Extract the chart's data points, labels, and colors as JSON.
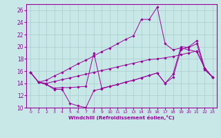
{
  "xlabel": "Windchill (Refroidissement éolien,°C)",
  "bg_color": "#c8e8e8",
  "line_color": "#990099",
  "grid_color": "#aacccc",
  "xlim": [
    -0.5,
    23.5
  ],
  "ylim": [
    10,
    27
  ],
  "yticks": [
    10,
    12,
    14,
    16,
    18,
    20,
    22,
    24,
    26
  ],
  "xticks": [
    0,
    1,
    2,
    3,
    4,
    5,
    6,
    7,
    8,
    9,
    10,
    11,
    12,
    13,
    14,
    15,
    16,
    17,
    18,
    19,
    20,
    21,
    22,
    23
  ],
  "lines_y": [
    [
      15.8,
      14.2,
      13.8,
      13.0,
      13.0,
      10.7,
      10.3,
      10.0,
      12.8,
      13.1,
      13.5,
      13.8,
      14.2,
      14.5,
      14.9,
      15.3,
      15.7,
      14.0,
      15.0,
      19.5,
      20.0,
      21.0,
      16.5,
      15.0
    ],
    [
      15.8,
      14.2,
      13.8,
      13.2,
      13.3,
      13.3,
      13.4,
      13.5,
      19.0,
      13.2,
      13.5,
      13.8,
      14.2,
      14.5,
      14.9,
      15.3,
      15.7,
      14.0,
      15.5,
      20.0,
      19.9,
      20.5,
      16.2,
      15.0
    ],
    [
      15.8,
      14.2,
      14.5,
      15.2,
      15.8,
      16.5,
      17.2,
      17.8,
      18.5,
      19.2,
      19.8,
      20.5,
      21.2,
      21.8,
      24.5,
      24.5,
      26.5,
      20.5,
      19.5,
      19.8,
      19.5,
      19.2,
      16.5,
      15.0
    ],
    [
      15.8,
      14.2,
      14.0,
      14.3,
      14.6,
      14.9,
      15.2,
      15.5,
      15.8,
      16.1,
      16.4,
      16.7,
      17.0,
      17.3,
      17.6,
      17.9,
      18.0,
      18.2,
      18.4,
      18.7,
      19.0,
      19.3,
      16.5,
      15.0
    ]
  ]
}
